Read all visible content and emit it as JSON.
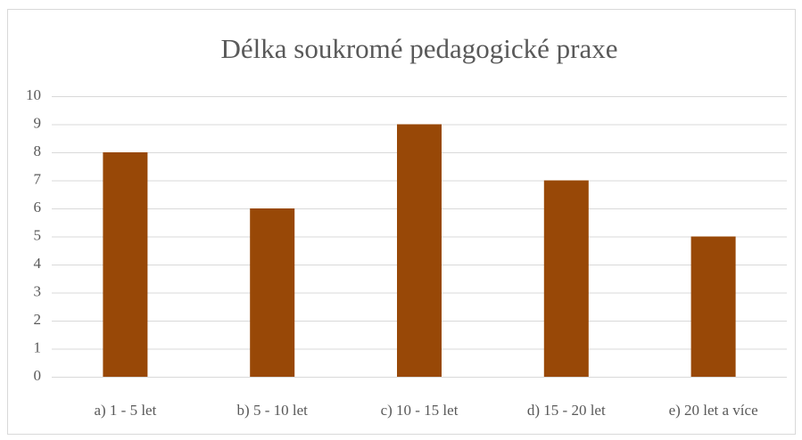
{
  "chart_data": {
    "type": "bar",
    "title": "Délka soukromé pedagogické praxe",
    "categories": [
      "a) 1 - 5 let",
      "b) 5 - 10 let",
      "c) 10 - 15 let",
      "d) 15 - 20 let",
      "e) 20 let a více"
    ],
    "values": [
      8,
      6,
      9,
      7,
      5
    ],
    "color": "#984807",
    "ylim": [
      0,
      10
    ],
    "yticks": [
      0,
      1,
      2,
      3,
      4,
      5,
      6,
      7,
      8,
      9,
      10
    ],
    "grid": true
  }
}
